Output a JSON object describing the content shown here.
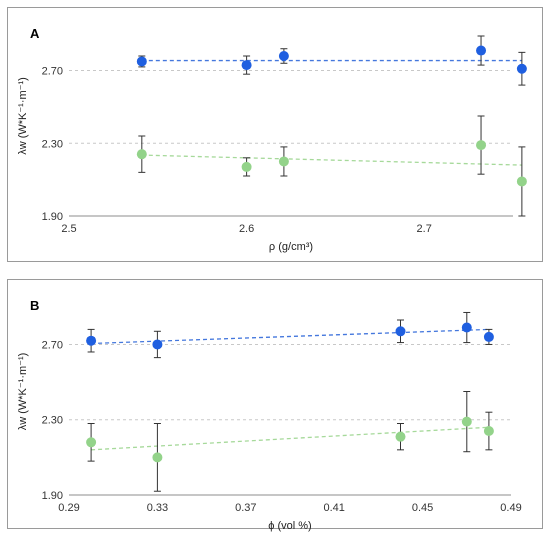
{
  "chart_data": [
    {
      "type": "scatter",
      "panel_label": "A",
      "xlabel": "ρ (g/cm³)",
      "ylabel": "λw (W*K⁻¹·m⁻¹)",
      "xlim": [
        2.5,
        2.75
      ],
      "ylim": [
        1.9,
        3.0
      ],
      "xticks": [
        2.5,
        2.6,
        2.7
      ],
      "xtick_labels": [
        "2.5",
        "2.6",
        "2.7"
      ],
      "yticks": [
        1.9,
        2.3,
        2.7
      ],
      "ytick_labels": [
        "1.90",
        "2.30",
        "2.70"
      ],
      "grid": "horizontal dashed",
      "series": [
        {
          "color": "#1f5fe0",
          "trend_color": "#4477dd",
          "points": [
            {
              "x": 2.541,
              "y": 2.75,
              "err": 0.03
            },
            {
              "x": 2.6,
              "y": 2.73,
              "err": 0.05
            },
            {
              "x": 2.621,
              "y": 2.78,
              "err": 0.04
            },
            {
              "x": 2.732,
              "y": 2.81,
              "err": 0.08
            },
            {
              "x": 2.755,
              "y": 2.71,
              "err": 0.09
            }
          ],
          "trend": [
            [
              2.541,
              2.755
            ],
            [
              2.755,
              2.755
            ]
          ]
        },
        {
          "color": "#93d38a",
          "trend_color": "#a6d99a",
          "points": [
            {
              "x": 2.541,
              "y": 2.24,
              "err": 0.1
            },
            {
              "x": 2.6,
              "y": 2.17,
              "err": 0.05
            },
            {
              "x": 2.621,
              "y": 2.2,
              "err": 0.08
            },
            {
              "x": 2.732,
              "y": 2.29,
              "err": 0.16
            },
            {
              "x": 2.755,
              "y": 2.09,
              "err": 0.19
            }
          ],
          "trend": [
            [
              2.541,
              2.235
            ],
            [
              2.755,
              2.18
            ]
          ]
        }
      ]
    },
    {
      "type": "scatter",
      "panel_label": "B",
      "xlabel": "ϕ (vol %)",
      "ylabel": "λw (W*K⁻¹·m⁻¹)",
      "xlim": [
        0.29,
        0.49
      ],
      "ylim": [
        1.9,
        3.0
      ],
      "xticks": [
        0.29,
        0.33,
        0.37,
        0.41,
        0.45,
        0.49
      ],
      "xtick_labels": [
        "0.29",
        "0.33",
        "0.37",
        "0.41",
        "0.45",
        "0.49"
      ],
      "yticks": [
        1.9,
        2.3,
        2.7
      ],
      "ytick_labels": [
        "1.90",
        "2.30",
        "2.70"
      ],
      "grid": "horizontal dashed",
      "series": [
        {
          "color": "#1f5fe0",
          "trend_color": "#4477dd",
          "points": [
            {
              "x": 0.3,
              "y": 2.72,
              "err": 0.06
            },
            {
              "x": 0.33,
              "y": 2.7,
              "err": 0.07
            },
            {
              "x": 0.44,
              "y": 2.77,
              "err": 0.06
            },
            {
              "x": 0.47,
              "y": 2.79,
              "err": 0.08
            },
            {
              "x": 0.48,
              "y": 2.74,
              "err": 0.04
            }
          ],
          "trend": [
            [
              0.3,
              2.705
            ],
            [
              0.48,
              2.78
            ]
          ]
        },
        {
          "color": "#93d38a",
          "trend_color": "#a6d99a",
          "points": [
            {
              "x": 0.3,
              "y": 2.18,
              "err": 0.1
            },
            {
              "x": 0.33,
              "y": 2.1,
              "err": 0.18
            },
            {
              "x": 0.44,
              "y": 2.21,
              "err": 0.07
            },
            {
              "x": 0.47,
              "y": 2.29,
              "err": 0.16
            },
            {
              "x": 0.48,
              "y": 2.24,
              "err": 0.1
            }
          ],
          "trend": [
            [
              0.3,
              2.14
            ],
            [
              0.48,
              2.26
            ]
          ]
        }
      ]
    }
  ]
}
